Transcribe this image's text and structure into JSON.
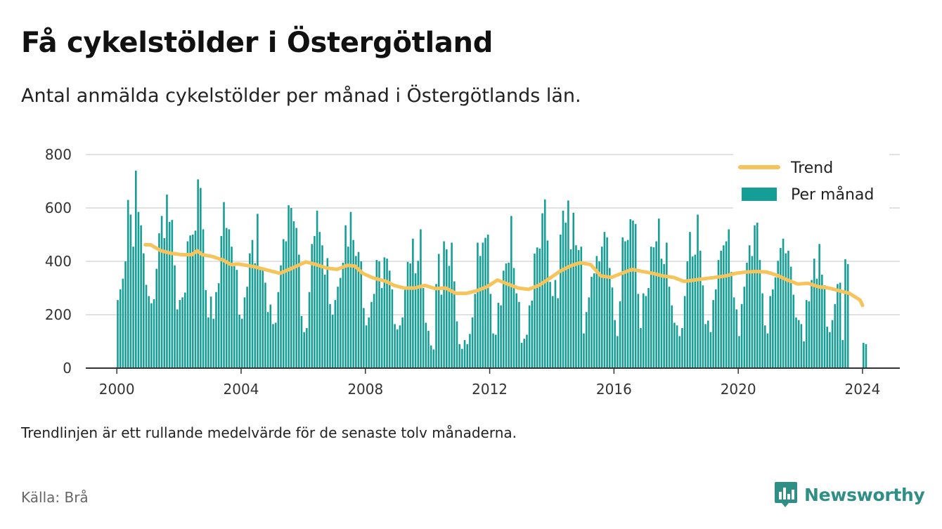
{
  "header": {
    "title": "Få cykelstölder i Östergötland",
    "subtitle": "Antal anmälda cykelstölder per månad i Östergötlands län."
  },
  "footer": {
    "note": "Trendlinjen är ett rullande medelvärde för de senaste tolv månaderna.",
    "source": "Källa: Brå",
    "brand": "Newsworthy"
  },
  "colors": {
    "bar": "#159e95",
    "trend": "#f7c35b",
    "brand": "#2f8f86",
    "grid": "#d9d9d9",
    "axis": "#333333"
  },
  "chart_data": {
    "type": "bar",
    "x_axis": {
      "range": [
        1999,
        2025.2
      ],
      "ticks": [
        2000,
        2004,
        2008,
        2012,
        2016,
        2020,
        2024
      ]
    },
    "y_axis": {
      "range": [
        0,
        800
      ],
      "ticks": [
        0,
        200,
        400,
        600,
        800
      ]
    },
    "grid": true,
    "legend": {
      "position": "top-right",
      "items": [
        {
          "label": "Trend",
          "type": "line"
        },
        {
          "label": "Per månad",
          "type": "bar"
        }
      ]
    },
    "series": [
      {
        "name": "Per månad",
        "type": "bar",
        "start": "2000-01",
        "values": [
          255,
          295,
          335,
          400,
          630,
          575,
          455,
          740,
          585,
          535,
          430,
          312,
          270,
          243,
          258,
          372,
          505,
          570,
          487,
          650,
          548,
          555,
          385,
          220,
          255,
          265,
          283,
          475,
          497,
          500,
          515,
          707,
          675,
          520,
          292,
          190,
          268,
          185,
          285,
          318,
          495,
          622,
          525,
          520,
          455,
          382,
          368,
          200,
          185,
          265,
          305,
          430,
          480,
          393,
          578,
          368,
          370,
          320,
          210,
          238,
          165,
          170,
          285,
          385,
          483,
          475,
          610,
          600,
          550,
          525,
          425,
          195,
          135,
          150,
          285,
          465,
          495,
          590,
          510,
          460,
          350,
          412,
          240,
          200,
          255,
          305,
          338,
          395,
          535,
          455,
          585,
          480,
          420,
          435,
          400,
          225,
          160,
          190,
          248,
          278,
          405,
          400,
          300,
          415,
          410,
          365,
          295,
          165,
          145,
          160,
          190,
          303,
          398,
          392,
          485,
          355,
          402,
          520,
          300,
          170,
          140,
          85,
          70,
          315,
          428,
          275,
          475,
          445,
          383,
          470,
          325,
          175,
          90,
          72,
          105,
          90,
          128,
          190,
          278,
          470,
          420,
          470,
          488,
          500,
          278,
          130,
          125,
          245,
          235,
          365,
          392,
          395,
          570,
          375,
          280,
          248,
          95,
          110,
          125,
          235,
          253,
          429,
          452,
          448,
          580,
          632,
          478,
          323,
          270,
          330,
          262,
          500,
          590,
          545,
          628,
          445,
          582,
          460,
          442,
          455,
          130,
          210,
          265,
          342,
          355,
          420,
          400,
          455,
          510,
          490,
          375,
          302,
          180,
          120,
          250,
          490,
          475,
          480,
          558,
          553,
          540,
          278,
          150,
          280,
          270,
          300,
          455,
          453,
          475,
          560,
          410,
          390,
          470,
          305,
          235,
          170,
          160,
          120,
          150,
          270,
          400,
          510,
          418,
          425,
          575,
          440,
          310,
          165,
          178,
          135,
          255,
          295,
          405,
          440,
          460,
          475,
          520,
          360,
          265,
          220,
          120,
          240,
          305,
          395,
          460,
          420,
          535,
          545,
          405,
          280,
          160,
          130,
          270,
          295,
          340,
          402,
          450,
          485,
          430,
          440,
          380,
          275,
          190,
          180,
          165,
          100,
          255,
          250,
          330,
          410,
          335,
          465,
          350,
          310,
          155,
          135,
          180,
          240,
          315,
          320,
          105,
          408,
          390,
          0,
          0,
          0,
          0,
          0,
          95,
          90
        ]
      },
      {
        "name": "Trend",
        "type": "line",
        "points": [
          [
            "2000-12",
            462
          ],
          [
            "2001-02",
            462
          ],
          [
            "2001-06",
            440
          ],
          [
            "2001-10",
            430
          ],
          [
            "2002-02",
            425
          ],
          [
            "2002-06",
            425
          ],
          [
            "2002-08",
            440
          ],
          [
            "2002-10",
            425
          ],
          [
            "2003-02",
            418
          ],
          [
            "2003-06",
            405
          ],
          [
            "2003-09",
            388
          ],
          [
            "2003-12",
            390
          ],
          [
            "2004-06",
            380
          ],
          [
            "2004-12",
            365
          ],
          [
            "2005-04",
            355
          ],
          [
            "2005-10",
            380
          ],
          [
            "2006-02",
            398
          ],
          [
            "2006-06",
            388
          ],
          [
            "2006-10",
            375
          ],
          [
            "2007-02",
            370
          ],
          [
            "2007-06",
            385
          ],
          [
            "2007-09",
            382
          ],
          [
            "2007-12",
            355
          ],
          [
            "2008-04",
            338
          ],
          [
            "2008-09",
            325
          ],
          [
            "2008-12",
            310
          ],
          [
            "2009-04",
            300
          ],
          [
            "2009-08",
            300
          ],
          [
            "2009-12",
            310
          ],
          [
            "2010-04",
            298
          ],
          [
            "2010-08",
            300
          ],
          [
            "2010-12",
            280
          ],
          [
            "2011-04",
            280
          ],
          [
            "2011-08",
            290
          ],
          [
            "2011-12",
            305
          ],
          [
            "2012-04",
            330
          ],
          [
            "2012-08",
            315
          ],
          [
            "2012-12",
            300
          ],
          [
            "2013-04",
            295
          ],
          [
            "2013-08",
            310
          ],
          [
            "2013-12",
            335
          ],
          [
            "2014-04",
            362
          ],
          [
            "2014-08",
            382
          ],
          [
            "2014-12",
            395
          ],
          [
            "2015-04",
            388
          ],
          [
            "2015-08",
            345
          ],
          [
            "2015-12",
            340
          ],
          [
            "2016-04",
            355
          ],
          [
            "2016-08",
            370
          ],
          [
            "2016-12",
            362
          ],
          [
            "2017-04",
            355
          ],
          [
            "2017-08",
            345
          ],
          [
            "2017-12",
            340
          ],
          [
            "2018-04",
            325
          ],
          [
            "2018-08",
            330
          ],
          [
            "2018-12",
            335
          ],
          [
            "2019-04",
            340
          ],
          [
            "2019-08",
            345
          ],
          [
            "2019-12",
            355
          ],
          [
            "2020-04",
            360
          ],
          [
            "2020-08",
            362
          ],
          [
            "2020-12",
            360
          ],
          [
            "2021-04",
            348
          ],
          [
            "2021-08",
            330
          ],
          [
            "2021-12",
            315
          ],
          [
            "2022-04",
            318
          ],
          [
            "2022-08",
            305
          ],
          [
            "2022-12",
            300
          ],
          [
            "2023-04",
            290
          ],
          [
            "2023-08",
            280
          ],
          [
            "2023-12",
            255
          ],
          [
            "2024-01",
            235
          ]
        ]
      }
    ]
  }
}
